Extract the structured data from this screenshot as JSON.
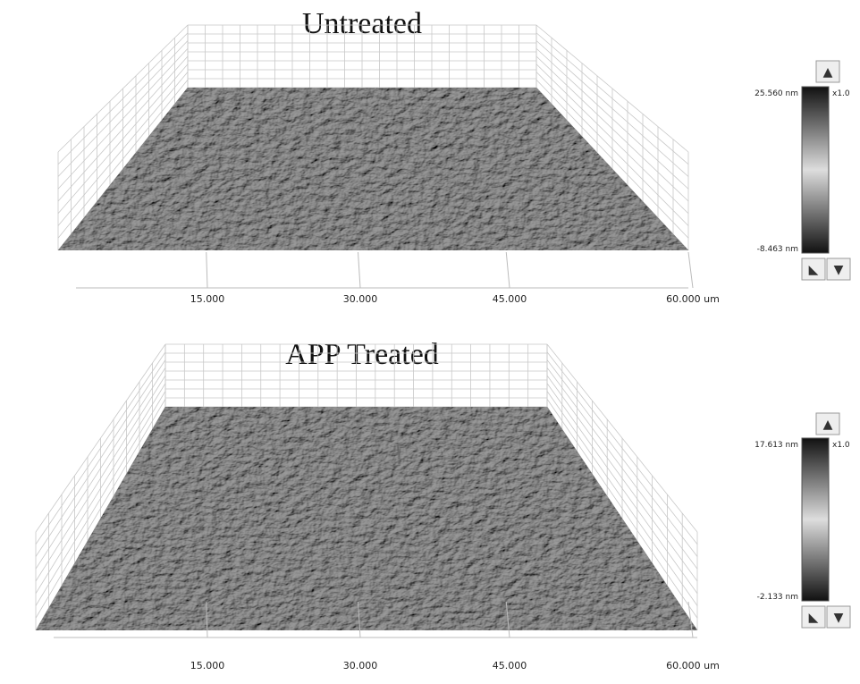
{
  "panels": [
    {
      "title": "Untreated",
      "x_axis": {
        "ticks": [
          "15.000",
          "30.000",
          "45.000",
          "60.000 um"
        ]
      },
      "colorbar": {
        "max": "25.560 nm",
        "min": "-8.463 nm",
        "zoom": "x1.0"
      }
    },
    {
      "title": "APP Treated",
      "x_axis": {
        "ticks": [
          "15.000",
          "30.000",
          "45.000",
          "60.000 um"
        ]
      },
      "colorbar": {
        "max": "17.613 nm",
        "min": "-2.133 nm",
        "zoom": "x1.0"
      }
    }
  ]
}
